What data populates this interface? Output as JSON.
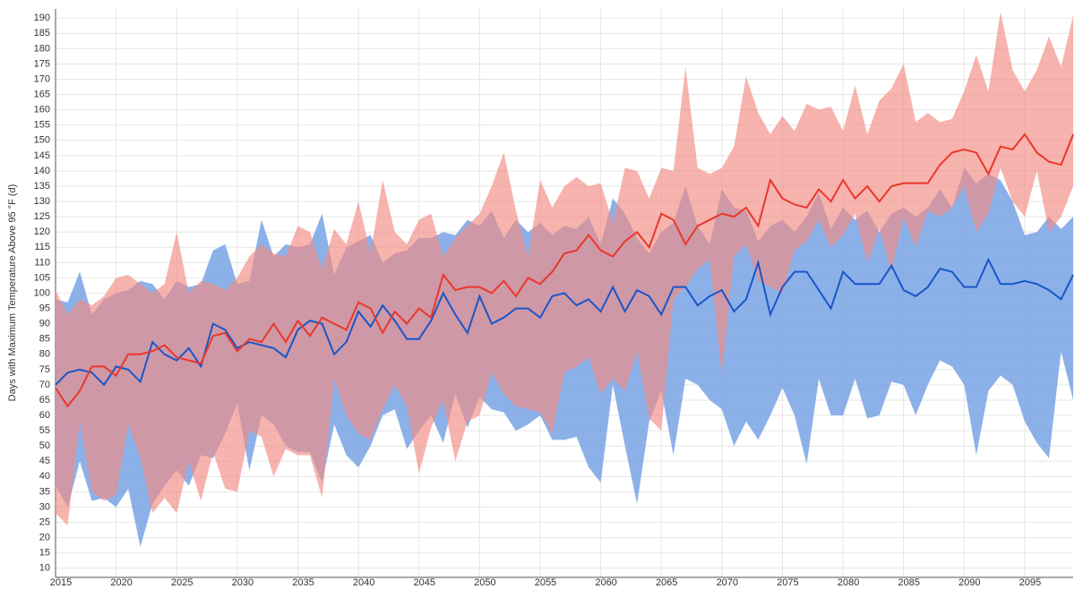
{
  "chart_data": {
    "type": "band-line",
    "y_label": "Days with Maximum Temperature Above 95 °F (d)",
    "x": [
      2015,
      2016,
      2017,
      2018,
      2019,
      2020,
      2021,
      2022,
      2023,
      2024,
      2025,
      2026,
      2027,
      2028,
      2029,
      2030,
      2031,
      2032,
      2033,
      2034,
      2035,
      2036,
      2037,
      2038,
      2039,
      2040,
      2041,
      2042,
      2043,
      2044,
      2045,
      2046,
      2047,
      2048,
      2049,
      2050,
      2051,
      2052,
      2053,
      2054,
      2055,
      2056,
      2057,
      2058,
      2059,
      2060,
      2061,
      2062,
      2063,
      2064,
      2065,
      2066,
      2067,
      2068,
      2069,
      2070,
      2071,
      2072,
      2073,
      2074,
      2075,
      2076,
      2077,
      2078,
      2079,
      2080,
      2081,
      2082,
      2083,
      2084,
      2085,
      2086,
      2087,
      2088,
      2089,
      2090,
      2091,
      2092,
      2093,
      2094,
      2095,
      2096,
      2097,
      2098,
      2099
    ],
    "xlim": [
      2015,
      2099
    ],
    "xticks": [
      2015,
      2020,
      2025,
      2030,
      2035,
      2040,
      2045,
      2050,
      2055,
      2060,
      2065,
      2070,
      2075,
      2080,
      2085,
      2090,
      2095
    ],
    "ylim": [
      7,
      193
    ],
    "yticks": [
      10,
      15,
      20,
      25,
      30,
      35,
      40,
      45,
      50,
      55,
      60,
      65,
      70,
      75,
      80,
      85,
      90,
      95,
      100,
      105,
      110,
      115,
      120,
      125,
      130,
      135,
      140,
      145,
      150,
      155,
      160,
      165,
      170,
      175,
      180,
      185,
      190
    ],
    "grid": true,
    "bands": [
      {
        "color": "#6f9de3",
        "upper": [
          98,
          97,
          107,
          93,
          98,
          100,
          101,
          104,
          103,
          98,
          104,
          102,
          103,
          114,
          116,
          103,
          104,
          124,
          112,
          116,
          115,
          116,
          126,
          106,
          115,
          117,
          119,
          110,
          113,
          114,
          118,
          118,
          120,
          119,
          124,
          122,
          127,
          118,
          124,
          120,
          123,
          119,
          122,
          121,
          125,
          116,
          131,
          126,
          118,
          113,
          120,
          123,
          135,
          122,
          116,
          134,
          128,
          127,
          117,
          122,
          124,
          120,
          125,
          133,
          121,
          128,
          124,
          127,
          120,
          126,
          128,
          125,
          128,
          134,
          128,
          141,
          136,
          139,
          137,
          130,
          119,
          120,
          125,
          121,
          125
        ],
        "lower": [
          37,
          30,
          45,
          32,
          33,
          30,
          36,
          17,
          31,
          37,
          42,
          37,
          47,
          46,
          54,
          64,
          42,
          60,
          57,
          50,
          48,
          48,
          38,
          57,
          47,
          43,
          50,
          60,
          62,
          49,
          55,
          60,
          51,
          67,
          56,
          66,
          62,
          61,
          55,
          57,
          60,
          52,
          52,
          53,
          43,
          38,
          70,
          50,
          31,
          58,
          68,
          47,
          72,
          70,
          65,
          62,
          50,
          58,
          52,
          60,
          69,
          60,
          44,
          72,
          60,
          60,
          72,
          59,
          60,
          71,
          70,
          60,
          70,
          78,
          76,
          70,
          47,
          68,
          73,
          70,
          58,
          51,
          46,
          81,
          65
        ]
      },
      {
        "color": "#f28b82",
        "upper": [
          101,
          93,
          98,
          96,
          99,
          105,
          106,
          103,
          100,
          103,
          120,
          100,
          104,
          103,
          101,
          105,
          112,
          116,
          113,
          112,
          122,
          120,
          108,
          121,
          116,
          130,
          113,
          137,
          120,
          116,
          124,
          126,
          112,
          118,
          122,
          126,
          135,
          146,
          127,
          112,
          137,
          128,
          135,
          138,
          135,
          136,
          123,
          141,
          140,
          131,
          141,
          140,
          174,
          141,
          139,
          141,
          148,
          171,
          159,
          152,
          158,
          153,
          162,
          160,
          161,
          153,
          168,
          152,
          163,
          167,
          175,
          156,
          159,
          156,
          157,
          166,
          178,
          166,
          192,
          173,
          166,
          173,
          184,
          174,
          191
        ],
        "lower": [
          28,
          24,
          58,
          35,
          32,
          34,
          57,
          46,
          28,
          33,
          28,
          45,
          32,
          48,
          36,
          35,
          55,
          53,
          40,
          49,
          47,
          47,
          33,
          72,
          60,
          54,
          52,
          62,
          70,
          63,
          41,
          56,
          65,
          45,
          58,
          60,
          74,
          67,
          63,
          62,
          61,
          54,
          74,
          76,
          79,
          67,
          72,
          68,
          81,
          59,
          55,
          98,
          102,
          108,
          111,
          73,
          112,
          116,
          104,
          102,
          100,
          114,
          117,
          124,
          115,
          119,
          126,
          110,
          121,
          107,
          125,
          115,
          127,
          125,
          128,
          135,
          120,
          126,
          141,
          130,
          125,
          140,
          120,
          125,
          135
        ]
      }
    ],
    "series": [
      {
        "color": "#1a56c8",
        "values": [
          70,
          74,
          75,
          74,
          70,
          76,
          75,
          71,
          84,
          80,
          78,
          82,
          76,
          90,
          88,
          82,
          84,
          83,
          82,
          79,
          88,
          91,
          90,
          80,
          84,
          94,
          89,
          96,
          91,
          85,
          85,
          91,
          100,
          93,
          87,
          99,
          90,
          92,
          95,
          95,
          92,
          99,
          100,
          96,
          98,
          94,
          102,
          94,
          101,
          99,
          93,
          102,
          102,
          96,
          99,
          101,
          94,
          98,
          110,
          93,
          102,
          107,
          107,
          101,
          95,
          107,
          103,
          103,
          103,
          109,
          101,
          99,
          102,
          108,
          107,
          102,
          102,
          111,
          103,
          103,
          104,
          103,
          101,
          98,
          106
        ]
      },
      {
        "color": "#e8382c",
        "values": [
          69,
          63,
          68,
          76,
          76,
          73,
          80,
          80,
          81,
          83,
          79,
          78,
          77,
          86,
          87,
          81,
          85,
          84,
          90,
          84,
          91,
          86,
          92,
          90,
          88,
          97,
          95,
          87,
          94,
          90,
          95,
          92,
          106,
          101,
          102,
          102,
          100,
          104,
          99,
          105,
          103,
          107,
          113,
          114,
          119,
          114,
          112,
          117,
          120,
          115,
          126,
          124,
          116,
          122,
          124,
          126,
          125,
          128,
          122,
          137,
          131,
          129,
          128,
          134,
          130,
          137,
          131,
          135,
          130,
          135,
          136,
          136,
          136,
          142,
          146,
          147,
          146,
          139,
          148,
          147,
          152,
          146,
          143,
          142,
          152
        ]
      }
    ]
  }
}
